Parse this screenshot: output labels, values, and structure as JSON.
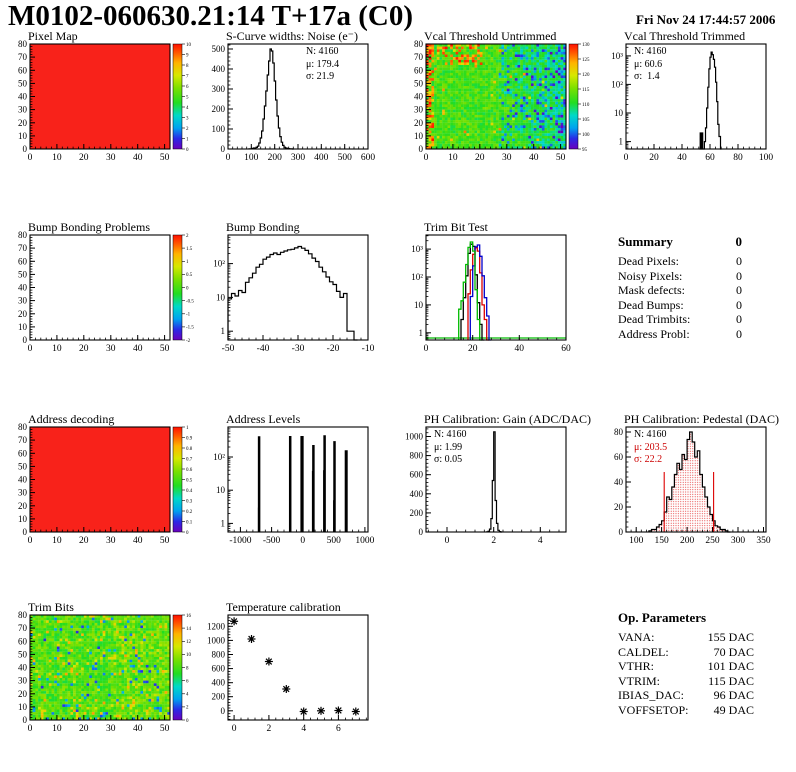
{
  "header": {
    "title": "M0102-060630.21:14 T+17a (C0)",
    "date": "Fri Nov 24 17:44:57 2006"
  },
  "chart_data": [
    {
      "name": "pixel_map",
      "title": "Pixel Map",
      "type": "heatmap",
      "pattern": "solid",
      "fill": "#f8221a",
      "xrange": [
        0,
        52
      ],
      "yrange": [
        0,
        80
      ],
      "xticks": [
        0,
        10,
        20,
        30,
        40,
        50
      ],
      "yticks": [
        0,
        10,
        20,
        30,
        40,
        50,
        60,
        70,
        80
      ],
      "colorbar": [
        "10",
        "9",
        "8",
        "7",
        "6",
        "5",
        "4",
        "3",
        "2",
        "1",
        "0"
      ]
    },
    {
      "name": "scurve_noise",
      "title": "S-Curve widths: Noise (e⁻)",
      "type": "hist",
      "color": "#000000",
      "binw": 6,
      "xrange": [
        0,
        600
      ],
      "yrange": [
        0,
        525
      ],
      "xticks": [
        0,
        100,
        200,
        300,
        400,
        500,
        600
      ],
      "yticks": [
        0,
        100,
        200,
        300,
        400,
        500
      ],
      "bins": [
        [
          90,
          1
        ],
        [
          102,
          2
        ],
        [
          108,
          5
        ],
        [
          114,
          3
        ],
        [
          120,
          8
        ],
        [
          126,
          14
        ],
        [
          132,
          30
        ],
        [
          138,
          55
        ],
        [
          144,
          90
        ],
        [
          150,
          150
        ],
        [
          156,
          215
        ],
        [
          162,
          290
        ],
        [
          168,
          370
        ],
        [
          174,
          440
        ],
        [
          180,
          500
        ],
        [
          186,
          490
        ],
        [
          192,
          430
        ],
        [
          198,
          340
        ],
        [
          204,
          245
        ],
        [
          210,
          165
        ],
        [
          216,
          105
        ],
        [
          222,
          62
        ],
        [
          228,
          34
        ],
        [
          234,
          18
        ],
        [
          240,
          9
        ],
        [
          246,
          5
        ],
        [
          252,
          3
        ],
        [
          258,
          2
        ],
        [
          264,
          1
        ],
        [
          276,
          0
        ]
      ],
      "stats": {
        "pos": "tr",
        "lines": [
          {
            "text": "N: 4160",
            "color": "#000000"
          },
          {
            "text": "μ: 179.4",
            "color": "#000000"
          },
          {
            "text": "σ: 21.9",
            "color": "#000000"
          }
        ]
      }
    },
    {
      "name": "vcal_untrimmed",
      "title": "Vcal Threshold Untrimmed",
      "type": "heatmap",
      "pattern": "vcal",
      "seed": 11,
      "xrange": [
        0,
        52
      ],
      "yrange": [
        0,
        80
      ],
      "xticks": [
        0,
        10,
        20,
        30,
        40,
        50
      ],
      "yticks": [
        0,
        10,
        20,
        30,
        40,
        50,
        60,
        70,
        80
      ],
      "colorbar": [
        "130",
        "125",
        "120",
        "115",
        "110",
        "105",
        "100",
        "95"
      ]
    },
    {
      "name": "vcal_trimmed",
      "title": "Vcal Threshold Trimmed",
      "type": "hist",
      "color": "#000000",
      "ylog": true,
      "binw": 0.8,
      "xrange": [
        0,
        100
      ],
      "yrange": [
        0.55,
        2600
      ],
      "xticks": [
        0,
        20,
        40,
        60,
        80,
        100
      ],
      "bins": [
        [
          52.5,
          0
        ],
        [
          53,
          2
        ],
        [
          53.6,
          0
        ],
        [
          54.2,
          2
        ],
        [
          54.8,
          0
        ],
        [
          56,
          1
        ],
        [
          56.8,
          3
        ],
        [
          57.6,
          15
        ],
        [
          58.4,
          80
        ],
        [
          59.2,
          350
        ],
        [
          60,
          900
        ],
        [
          60.8,
          1350
        ],
        [
          61.6,
          1100
        ],
        [
          62.4,
          750
        ],
        [
          63.2,
          400
        ],
        [
          64,
          120
        ],
        [
          64.8,
          25
        ],
        [
          65.6,
          4
        ],
        [
          66.4,
          1.5
        ],
        [
          67.5,
          0
        ]
      ],
      "stats": {
        "pos": "tl",
        "lines": [
          {
            "text": "N: 4160",
            "color": "#000000"
          },
          {
            "text": "μ: 60.6",
            "color": "#000000"
          },
          {
            "text": "σ:  1.4",
            "color": "#000000"
          }
        ]
      }
    },
    {
      "name": "bump_problems",
      "title": "Bump Bonding Problems",
      "type": "heatmap",
      "pattern": "empty",
      "xrange": [
        0,
        52
      ],
      "yrange": [
        0,
        80
      ],
      "xticks": [
        0,
        10,
        20,
        30,
        40,
        50
      ],
      "yticks": [
        0,
        10,
        20,
        30,
        40,
        50,
        60,
        70,
        80
      ],
      "colorbar": [
        "2",
        "1.5",
        "1",
        "0.5",
        "0",
        "-0.5",
        "-1",
        "-1.5",
        "-2"
      ]
    },
    {
      "name": "bump_bonding",
      "title": "Bump Bonding",
      "type": "hist",
      "color": "#000000",
      "ylog": true,
      "binw": 1,
      "xrange": [
        -50,
        -10
      ],
      "yrange": [
        0.55,
        700
      ],
      "xticks": [
        -50,
        -40,
        -30,
        -20,
        -10
      ],
      "bins": [
        [
          -50,
          9
        ],
        [
          -49,
          13
        ],
        [
          -48,
          11
        ],
        [
          -47,
          16
        ],
        [
          -46,
          14
        ],
        [
          -45,
          28
        ],
        [
          -44,
          38
        ],
        [
          -43,
          52
        ],
        [
          -42,
          78
        ],
        [
          -41,
          95
        ],
        [
          -40,
          135
        ],
        [
          -39,
          155
        ],
        [
          -38,
          185
        ],
        [
          -37,
          205
        ],
        [
          -36,
          185
        ],
        [
          -35,
          215
        ],
        [
          -34,
          235
        ],
        [
          -33,
          255
        ],
        [
          -32,
          265
        ],
        [
          -31,
          290
        ],
        [
          -30,
          320
        ],
        [
          -29,
          285
        ],
        [
          -28,
          245
        ],
        [
          -27,
          195
        ],
        [
          -26,
          145
        ],
        [
          -25,
          115
        ],
        [
          -24,
          78
        ],
        [
          -23,
          57
        ],
        [
          -22,
          40
        ],
        [
          -21,
          29
        ],
        [
          -20,
          24
        ],
        [
          -19,
          15
        ],
        [
          -18,
          10
        ],
        [
          -17,
          13
        ],
        [
          -16,
          1
        ],
        [
          -15,
          1
        ],
        [
          -14,
          0
        ]
      ]
    },
    {
      "name": "trimbit_test",
      "title": "Trim Bit Test",
      "type": "mhist",
      "ylog": true,
      "xrange": [
        0,
        60
      ],
      "yrange": [
        0.55,
        3200
      ],
      "xticks": [
        0,
        20,
        40,
        60
      ],
      "baseline": {
        "v": 0.65,
        "color": "#00bb00"
      },
      "series": [
        {
          "name": "trim-black",
          "color": "#000000",
          "bins": [
            [
              15,
              3
            ],
            [
              16,
              18
            ],
            [
              17,
              110
            ],
            [
              18,
              700
            ],
            [
              19,
              1500
            ],
            [
              20,
              1250
            ],
            [
              21,
              120
            ],
            [
              22,
              12
            ],
            [
              23,
              2
            ],
            [
              24,
              0
            ]
          ]
        },
        {
          "name": "trim-red",
          "color": "#dd0000",
          "bins": [
            [
              18,
              25
            ],
            [
              19,
              180
            ],
            [
              20,
              650
            ],
            [
              21,
              1100
            ],
            [
              22,
              850
            ],
            [
              23,
              140
            ],
            [
              24,
              10
            ],
            [
              25,
              3
            ],
            [
              26,
              0
            ]
          ]
        },
        {
          "name": "trim-blue",
          "color": "#0000cc",
          "bins": [
            [
              19,
              20
            ],
            [
              20,
              250
            ],
            [
              21,
              1200
            ],
            [
              22,
              1400
            ],
            [
              23,
              550
            ],
            [
              24,
              110
            ],
            [
              25,
              18
            ],
            [
              26,
              4
            ],
            [
              27,
              0
            ]
          ]
        },
        {
          "name": "trim-green",
          "color": "#00bb00",
          "bins": [
            [
              14,
              7
            ],
            [
              15,
              14
            ],
            [
              16,
              65
            ],
            [
              17,
              280
            ],
            [
              18,
              1150
            ],
            [
              19,
              1800
            ],
            [
              20,
              850
            ],
            [
              21,
              35
            ],
            [
              22,
              3
            ],
            [
              23,
              0
            ]
          ]
        }
      ]
    },
    {
      "name": "address_decoding",
      "title": "Address decoding",
      "type": "heatmap",
      "pattern": "solid",
      "fill": "#f8221a",
      "xrange": [
        0,
        52
      ],
      "yrange": [
        0,
        80
      ],
      "xticks": [
        0,
        10,
        20,
        30,
        40,
        50
      ],
      "yticks": [
        0,
        10,
        20,
        30,
        40,
        50,
        60,
        70,
        80
      ],
      "colorbar": [
        "1",
        "0.9",
        "0.8",
        "0.7",
        "0.6",
        "0.5",
        "0.4",
        "0.3",
        "0.2",
        "0.1",
        "0"
      ]
    },
    {
      "name": "address_levels",
      "title": "Address Levels",
      "type": "spikes",
      "ylog": true,
      "xrange": [
        -1200,
        1050
      ],
      "yrange": [
        0.55,
        800
      ],
      "xticks": [
        -1000,
        -500,
        0,
        500,
        1000
      ],
      "spikes": [
        [
          -712,
          3,
          1
        ],
        [
          -700,
          420,
          2.5
        ],
        [
          -212,
          2,
          1
        ],
        [
          -200,
          430,
          2.5
        ],
        [
          -20,
          430,
          2
        ],
        [
          -5,
          430,
          2.5
        ],
        [
          158,
          38,
          1.2
        ],
        [
          172,
          230,
          2.5
        ],
        [
          338,
          40,
          1.2
        ],
        [
          352,
          450,
          2.5
        ],
        [
          498,
          5,
          1.2
        ],
        [
          512,
          300,
          2.5
        ],
        [
          688,
          1,
          1
        ],
        [
          700,
          160,
          3
        ]
      ]
    },
    {
      "name": "ph_gain",
      "title": "PH Calibration: Gain (ADC/DAC)",
      "type": "hist",
      "color": "#000000",
      "binw": 0.06,
      "xrange": [
        -0.9,
        5.1
      ],
      "yrange": [
        0,
        1100
      ],
      "xticks": [
        0,
        2,
        4
      ],
      "yticks": [
        0,
        200,
        400,
        600,
        800,
        1000
      ],
      "bins": [
        [
          1.7,
          2
        ],
        [
          1.76,
          8
        ],
        [
          1.82,
          30
        ],
        [
          1.88,
          140
        ],
        [
          1.94,
          540
        ],
        [
          2.0,
          1050
        ],
        [
          2.06,
          330
        ],
        [
          2.12,
          90
        ],
        [
          2.18,
          18
        ],
        [
          2.24,
          4
        ],
        [
          2.3,
          0
        ]
      ],
      "stats": {
        "pos": "tl",
        "lines": [
          {
            "text": "N: 4160",
            "color": "#000000"
          },
          {
            "text": "μ: 1.99",
            "color": "#000000"
          },
          {
            "text": "σ: 0.05",
            "color": "#000000"
          }
        ]
      }
    },
    {
      "name": "ph_pedestal",
      "title": "PH Calibration: Pedestal (DAC)",
      "type": "fillhist",
      "color": "#000000",
      "fill": "#dd0000",
      "binw": 5,
      "xrange": [
        80,
        355
      ],
      "yrange": [
        0,
        84
      ],
      "xticks": [
        100,
        150,
        200,
        250,
        300,
        350
      ],
      "yticks": [
        0,
        20,
        40,
        60,
        80
      ],
      "vlines": [
        [
          155,
          48
        ],
        [
          252,
          48
        ]
      ],
      "bins": [
        [
          125,
          1
        ],
        [
          130,
          2
        ],
        [
          135,
          2
        ],
        [
          140,
          4
        ],
        [
          145,
          6
        ],
        [
          150,
          9
        ],
        [
          155,
          16
        ],
        [
          160,
          28
        ],
        [
          165,
          26
        ],
        [
          170,
          36
        ],
        [
          175,
          46
        ],
        [
          180,
          55
        ],
        [
          185,
          50
        ],
        [
          190,
          62
        ],
        [
          195,
          58
        ],
        [
          200,
          74
        ],
        [
          205,
          80
        ],
        [
          210,
          72
        ],
        [
          215,
          60
        ],
        [
          220,
          65
        ],
        [
          225,
          46
        ],
        [
          230,
          36
        ],
        [
          235,
          28
        ],
        [
          240,
          20
        ],
        [
          245,
          14
        ],
        [
          250,
          9
        ],
        [
          255,
          5
        ],
        [
          260,
          4
        ],
        [
          265,
          2
        ],
        [
          270,
          2
        ],
        [
          275,
          1
        ],
        [
          280,
          0
        ]
      ],
      "stats": {
        "pos": "tl",
        "lines": [
          {
            "text": "N: 4160",
            "color": "#000000"
          },
          {
            "text": "μ: 203.5",
            "color": "#cc0000"
          },
          {
            "text": "σ: 22.2",
            "color": "#cc0000"
          }
        ]
      }
    },
    {
      "name": "trim_bits",
      "title": "Trim Bits",
      "type": "heatmap",
      "pattern": "trim",
      "seed": 23,
      "xrange": [
        0,
        52
      ],
      "yrange": [
        0,
        80
      ],
      "xticks": [
        0,
        10,
        20,
        30,
        40,
        50
      ],
      "yticks": [
        0,
        10,
        20,
        30,
        40,
        50,
        60,
        70,
        80
      ],
      "colorbar": [
        "16",
        "14",
        "12",
        "10",
        "8",
        "6",
        "4",
        "2",
        "0"
      ]
    },
    {
      "name": "temp_calibration",
      "title": "Temperature calibration",
      "type": "scatter",
      "xrange": [
        -0.35,
        7.7
      ],
      "yrange": [
        -130,
        1360
      ],
      "xticks": [
        0,
        2,
        4,
        6
      ],
      "yticks": [
        0,
        200,
        400,
        600,
        800,
        1000,
        1200
      ],
      "points": [
        [
          0,
          1270
        ],
        [
          1,
          1020
        ],
        [
          2,
          700
        ],
        [
          3,
          310
        ],
        [
          4,
          -10
        ],
        [
          5,
          0
        ],
        [
          6,
          5
        ],
        [
          7,
          -10
        ]
      ]
    }
  ],
  "summary": {
    "heading": "Summary",
    "heading_value": "0",
    "rows": [
      {
        "label": "Dead Pixels:",
        "value": "0"
      },
      {
        "label": "Noisy Pixels:",
        "value": "0"
      },
      {
        "label": "Mask defects:",
        "value": "0"
      },
      {
        "label": "Dead Bumps:",
        "value": "0"
      },
      {
        "label": "Dead Trimbits:",
        "value": "0"
      },
      {
        "label": "Address Probl:",
        "value": "0"
      }
    ]
  },
  "op_parameters": {
    "heading": "Op. Parameters",
    "rows": [
      {
        "label": "VANA:",
        "value": "155 DAC"
      },
      {
        "label": "CALDEL:",
        "value": "70 DAC"
      },
      {
        "label": "VTHR:",
        "value": "101 DAC"
      },
      {
        "label": "VTRIM:",
        "value": "115 DAC"
      },
      {
        "label": "IBIAS_DAC:",
        "value": "96 DAC"
      },
      {
        "label": "VOFFSETOP:",
        "value": "49 DAC"
      }
    ]
  }
}
